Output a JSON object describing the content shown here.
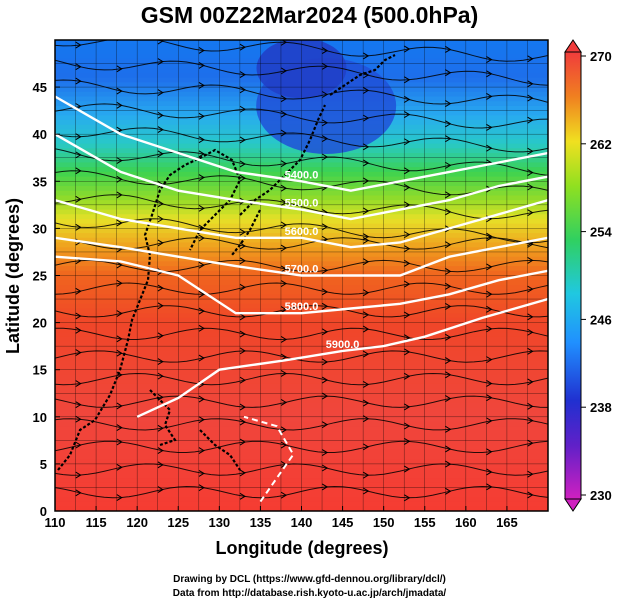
{
  "title": "GSM 00Z22Mar2024 (500.0hPa)",
  "chart_data": {
    "type": "heatmap",
    "title": "GSM 00Z22Mar2024 (500.0hPa)",
    "xlabel": "Longitude (degrees)",
    "ylabel": "Latitude  (degrees)",
    "xlim": [
      110,
      170
    ],
    "ylim": [
      0,
      50
    ],
    "x_ticks": [
      "110",
      "115",
      "120",
      "125",
      "130",
      "135",
      "140",
      "145",
      "150",
      "155",
      "160",
      "165"
    ],
    "y_ticks": [
      "0",
      "5",
      "10",
      "15",
      "20",
      "25",
      "30",
      "35",
      "40",
      "45"
    ],
    "grid": true,
    "colorbar": {
      "placement": "right",
      "min": 230,
      "max": 270,
      "labels": [
        "270",
        "262",
        "254",
        "246",
        "238",
        "230"
      ],
      "label_values": [
        270,
        262,
        254,
        246,
        238,
        230
      ],
      "colors": [
        "#d020c0",
        "#2020d0",
        "#2080ff",
        "#20c8e0",
        "#30d060",
        "#a0e020",
        "#f0e020",
        "#f09020",
        "#f05020",
        "#f04040"
      ]
    },
    "contours": [
      {
        "label": "5400.0",
        "points": [
          [
            110,
            44
          ],
          [
            118,
            40
          ],
          [
            125,
            38
          ],
          [
            132,
            36
          ],
          [
            140,
            35
          ],
          [
            146,
            34
          ],
          [
            152,
            35
          ],
          [
            158,
            36
          ],
          [
            164,
            37
          ],
          [
            170,
            38
          ]
        ]
      },
      {
        "label": "5500.0",
        "points": [
          [
            110,
            40
          ],
          [
            118,
            36
          ],
          [
            125,
            34
          ],
          [
            132,
            33
          ],
          [
            140,
            32
          ],
          [
            146,
            31
          ],
          [
            152,
            32
          ],
          [
            158,
            33
          ],
          [
            164,
            34.5
          ],
          [
            170,
            35.5
          ]
        ]
      },
      {
        "label": "5600.0",
        "points": [
          [
            110,
            33
          ],
          [
            118,
            31
          ],
          [
            125,
            30
          ],
          [
            132,
            29
          ],
          [
            140,
            29
          ],
          [
            146,
            28
          ],
          [
            152,
            28.5
          ],
          [
            158,
            30
          ],
          [
            164,
            31.5
          ],
          [
            170,
            33
          ]
        ]
      },
      {
        "label": "5700.0",
        "points": [
          [
            110,
            29
          ],
          [
            118,
            28
          ],
          [
            125,
            27
          ],
          [
            132,
            26
          ],
          [
            140,
            25
          ],
          [
            146,
            25
          ],
          [
            152,
            25
          ],
          [
            158,
            27
          ],
          [
            164,
            28
          ],
          [
            170,
            29
          ]
        ]
      },
      {
        "label": "5800.0",
        "points": [
          [
            110,
            27
          ],
          [
            118,
            26.5
          ],
          [
            125,
            25
          ],
          [
            132,
            21
          ],
          [
            140,
            21
          ],
          [
            146,
            21.5
          ],
          [
            152,
            22
          ],
          [
            158,
            23
          ],
          [
            164,
            24.5
          ],
          [
            170,
            25.5
          ]
        ]
      },
      {
        "label": "5900.0",
        "points": [
          [
            120,
            10
          ],
          [
            125,
            12
          ],
          [
            130,
            15
          ],
          [
            138,
            16
          ],
          [
            145,
            17
          ],
          [
            150,
            17.5
          ],
          [
            155,
            18.5
          ],
          [
            162,
            20.5
          ],
          [
            170,
            22.5
          ]
        ]
      }
    ],
    "contour_labels": [
      "5400.0",
      "5500.0",
      "5600.0",
      "5700.0",
      "5800.0",
      "5900.0"
    ]
  },
  "credits": {
    "line1": "Drawing by DCL (https://www.gfd-dennou.org/library/dcl/)",
    "line2": "Data from http://database.rish.kyoto-u.ac.jp/arch/jmadata/"
  }
}
